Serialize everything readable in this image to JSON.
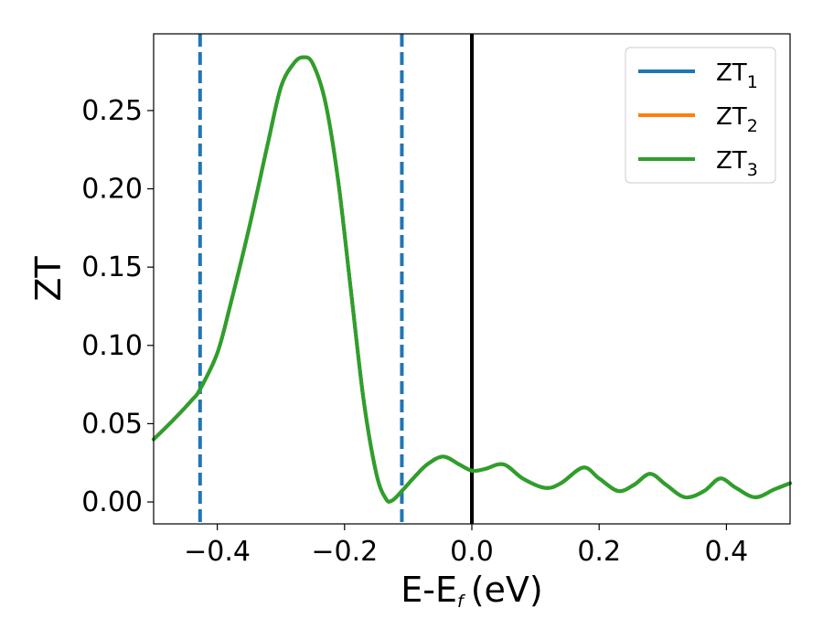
{
  "chart_data": {
    "type": "line",
    "xlabel_main": "E-E",
    "xlabel_sub": "f",
    "xlabel_unit": "(eV)",
    "ylabel": "ZT",
    "xlim": [
      -0.5,
      0.5
    ],
    "ylim": [
      -0.014,
      0.299
    ],
    "x_ticks": [
      -0.4,
      -0.2,
      0.0,
      0.2,
      0.4
    ],
    "x_tick_labels": [
      "−0.4",
      "−0.2",
      "0.0",
      "0.2",
      "0.4"
    ],
    "y_ticks": [
      0.0,
      0.05,
      0.1,
      0.15,
      0.2,
      0.25
    ],
    "y_tick_labels": [
      "0.00",
      "0.05",
      "0.10",
      "0.15",
      "0.20",
      "0.25"
    ],
    "grid": false,
    "legend_position": "top-right",
    "vlines": [
      {
        "x": -0.427,
        "style": "dashed",
        "color": "#1f77b4"
      },
      {
        "x": -0.11,
        "style": "dashed",
        "color": "#1f77b4"
      },
      {
        "x": 0.0,
        "style": "solid",
        "color": "#000000"
      }
    ],
    "series": [
      {
        "name_main": "ZT",
        "name_sub": "1",
        "color": "#1f77b4"
      },
      {
        "name_main": "ZT",
        "name_sub": "2",
        "color": "#ff7f0e"
      },
      {
        "name_main": "ZT",
        "name_sub": "3",
        "color": "#2ca02c"
      }
    ],
    "x": [
      -0.5,
      -0.47,
      -0.44,
      -0.427,
      -0.4,
      -0.38,
      -0.35,
      -0.32,
      -0.3,
      -0.28,
      -0.265,
      -0.25,
      -0.23,
      -0.21,
      -0.19,
      -0.17,
      -0.15,
      -0.135,
      -0.125,
      -0.11,
      -0.09,
      -0.07,
      -0.045,
      -0.02,
      0.0,
      0.02,
      0.05,
      0.08,
      0.115,
      0.14,
      0.175,
      0.2,
      0.23,
      0.255,
      0.28,
      0.305,
      0.335,
      0.365,
      0.39,
      0.415,
      0.445,
      0.475,
      0.5
    ],
    "y": [
      0.04,
      0.052,
      0.065,
      0.072,
      0.095,
      0.125,
      0.175,
      0.23,
      0.265,
      0.28,
      0.284,
      0.28,
      0.255,
      0.205,
      0.135,
      0.065,
      0.018,
      0.002,
      0.001,
      0.007,
      0.016,
      0.024,
      0.029,
      0.024,
      0.02,
      0.021,
      0.024,
      0.015,
      0.009,
      0.012,
      0.022,
      0.015,
      0.007,
      0.011,
      0.018,
      0.011,
      0.003,
      0.007,
      0.015,
      0.009,
      0.003,
      0.008,
      0.012
    ]
  }
}
